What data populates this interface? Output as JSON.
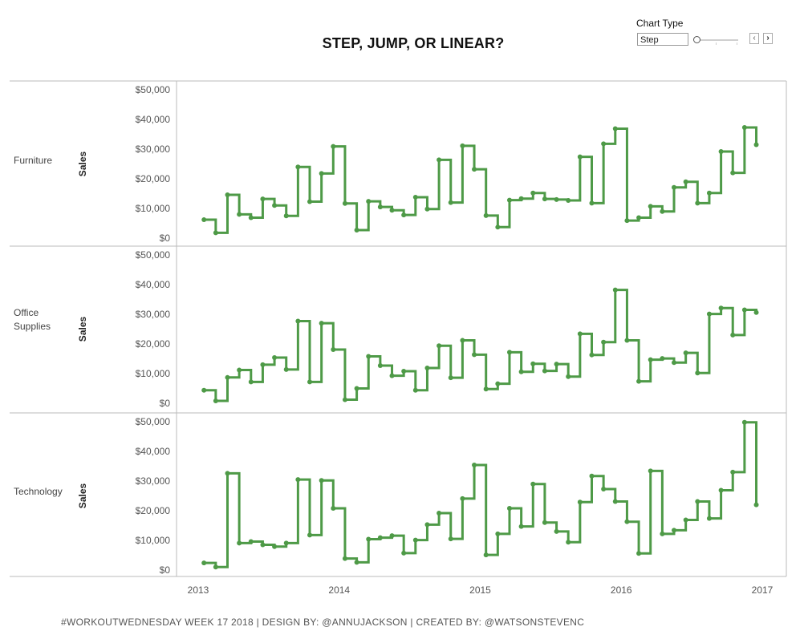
{
  "title": "STEP, JUMP, OR LINEAR?",
  "control": {
    "label": "Chart Type",
    "selected": "Step",
    "prev_icon": "chevron-left-icon",
    "next_icon": "chevron-right-icon"
  },
  "footer": "#WORKOUTWEDNESDAY WEEK 17 2018  | DESIGN BY: @ANNUJACKSON | CREATED BY: @WATSONSTEVENC",
  "colors": {
    "line": "#4e9a47",
    "axis": "#bbbbbb"
  },
  "chart_data": {
    "type": "line",
    "step": true,
    "y_label": "Sales",
    "ylim": [
      0,
      50000
    ],
    "y_ticks": [
      "$0",
      "$10,000",
      "$20,000",
      "$30,000",
      "$40,000",
      "$50,000"
    ],
    "x_ticks": [
      "2013",
      "2014",
      "2015",
      "2016",
      "2017"
    ],
    "xlim": [
      2013,
      2017
    ],
    "x_start": 2013.041,
    "x_step": 0.08333,
    "grid": false,
    "series": [
      {
        "name": "Furniture",
        "values": [
          6200,
          1800,
          14600,
          8000,
          6900,
          13200,
          11000,
          7500,
          24000,
          12300,
          21800,
          30900,
          11700,
          2700,
          12400,
          10500,
          9400,
          7800,
          13800,
          9800,
          26400,
          12000,
          31100,
          23200,
          7600,
          3700,
          12800,
          13300,
          15200,
          13200,
          13000,
          12700,
          27400,
          11800,
          31800,
          36900,
          5900,
          6900,
          10700,
          9000,
          17100,
          19000,
          11800,
          15200,
          29200,
          22000,
          37300,
          31500
        ]
      },
      {
        "name": "Office Supplies",
        "values": [
          4400,
          800,
          8700,
          11200,
          7200,
          13000,
          15400,
          11400,
          27700,
          7200,
          27000,
          18100,
          1200,
          5000,
          15800,
          12700,
          9300,
          10800,
          4400,
          11900,
          19400,
          8600,
          21200,
          16400,
          4800,
          6600,
          17200,
          10600,
          13300,
          10900,
          13200,
          9000,
          23400,
          16300,
          20600,
          38200,
          21200,
          7400,
          14700,
          15100,
          13700,
          17000,
          10200,
          30100,
          32100,
          23000,
          31500,
          30600
        ]
      },
      {
        "name": "Technology",
        "values": [
          2400,
          1000,
          32600,
          9100,
          9600,
          8500,
          7900,
          9100,
          30500,
          11800,
          30200,
          20800,
          3900,
          2600,
          10400,
          10900,
          11600,
          5700,
          10100,
          15300,
          19200,
          10500,
          24100,
          35400,
          5100,
          12200,
          20800,
          14700,
          29000,
          16000,
          13000,
          9400,
          22900,
          31700,
          27300,
          23100,
          16300,
          5600,
          33400,
          12200,
          13400,
          16900,
          23100,
          17400,
          26900,
          33000,
          49800,
          22000
        ]
      }
    ]
  }
}
